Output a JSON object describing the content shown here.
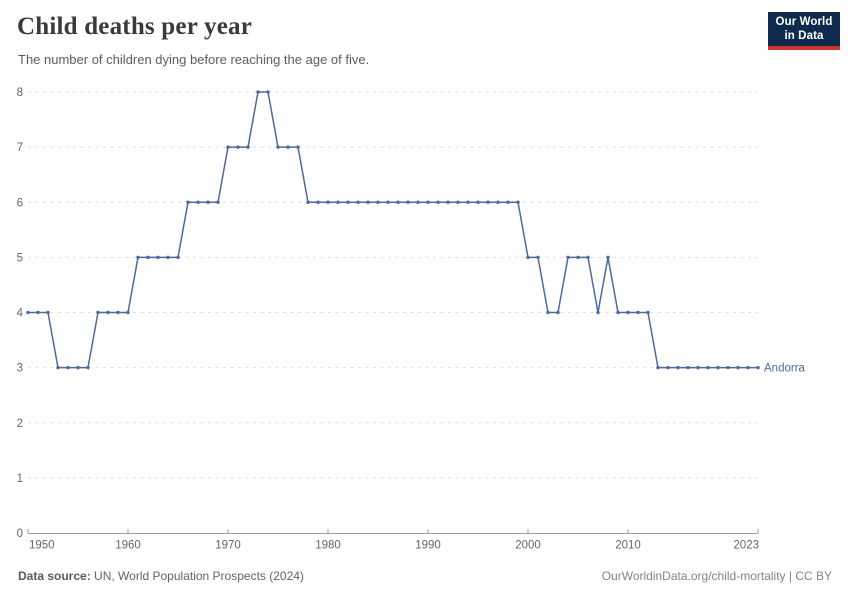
{
  "header": {
    "title": "Child deaths per year",
    "subtitle": "The number of children dying before reaching the age of five."
  },
  "logo": {
    "line1": "Our World",
    "line2": "in Data",
    "bg_color": "#0e2b4d",
    "accent_color": "#cf3530"
  },
  "chart_data": {
    "type": "line",
    "title": "Child deaths per year",
    "subtitle": "The number of children dying before reaching the age of five.",
    "xlabel": "",
    "ylabel": "",
    "xlim": [
      1950,
      2023
    ],
    "ylim": [
      0,
      8
    ],
    "xticks": [
      1950,
      1960,
      1970,
      1980,
      1990,
      2000,
      2010,
      2023
    ],
    "yticks": [
      0,
      1,
      2,
      3,
      4,
      5,
      6,
      7,
      8
    ],
    "grid": "horizontal-dashed",
    "legend_position": "inline-right-of-line",
    "series": [
      {
        "name": "Andorra",
        "color": "#4c6a9c",
        "years": [
          1950,
          1951,
          1952,
          1953,
          1954,
          1955,
          1956,
          1957,
          1958,
          1959,
          1960,
          1961,
          1962,
          1963,
          1964,
          1965,
          1966,
          1967,
          1968,
          1969,
          1970,
          1971,
          1972,
          1973,
          1974,
          1975,
          1976,
          1977,
          1978,
          1979,
          1980,
          1981,
          1982,
          1983,
          1984,
          1985,
          1986,
          1987,
          1988,
          1989,
          1990,
          1991,
          1992,
          1993,
          1994,
          1995,
          1996,
          1997,
          1998,
          1999,
          2000,
          2001,
          2002,
          2003,
          2004,
          2005,
          2006,
          2007,
          2008,
          2009,
          2010,
          2011,
          2012,
          2013,
          2014,
          2015,
          2016,
          2017,
          2018,
          2019,
          2020,
          2021,
          2022,
          2023
        ],
        "values": [
          4,
          4,
          4,
          3,
          3,
          3,
          3,
          4,
          4,
          4,
          4,
          5,
          5,
          5,
          5,
          5,
          6,
          6,
          6,
          6,
          7,
          7,
          7,
          8,
          8,
          7,
          7,
          7,
          6,
          6,
          6,
          6,
          6,
          6,
          6,
          6,
          6,
          6,
          6,
          6,
          6,
          6,
          6,
          6,
          6,
          6,
          6,
          6,
          6,
          6,
          5,
          5,
          4,
          4,
          5,
          5,
          5,
          4,
          5,
          4,
          4,
          4,
          4,
          3,
          3,
          3,
          3,
          3,
          3,
          3,
          3,
          3,
          3,
          3
        ]
      }
    ]
  },
  "footer": {
    "source_label": "Data source:",
    "source_value": "UN, World Population Prospects (2024)",
    "credit": "OurWorldinData.org/child-mortality | CC BY"
  }
}
